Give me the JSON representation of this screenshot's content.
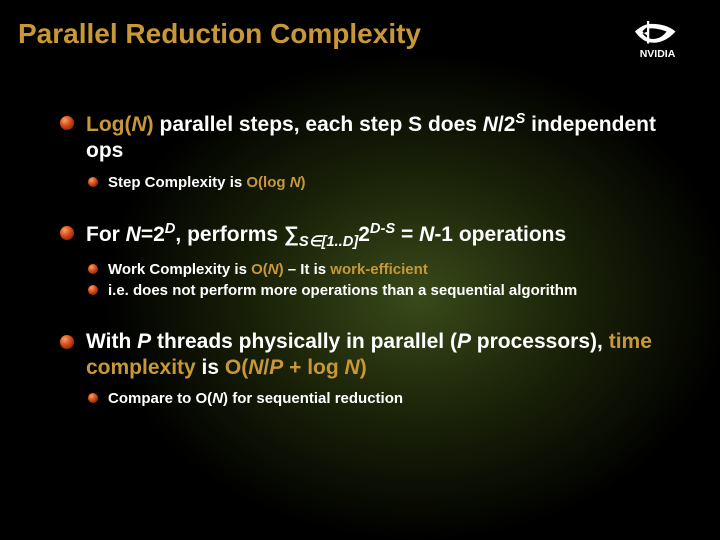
{
  "title": "Parallel Reduction Complexity",
  "colors": {
    "title": "#c89838",
    "highlight": "#c89838",
    "text": "#ffffff",
    "background": "#000000",
    "glow": "#3a4a1a",
    "bullet_light": "#ffa060",
    "bullet_mid": "#d04818",
    "bullet_dark": "#601800"
  },
  "typography": {
    "title_fontsize": 28,
    "main_fontsize": 21,
    "sub_fontsize": 15,
    "font_family": "Arial"
  },
  "bullets": [
    {
      "main_html": "<span class=\"hl\">Log(<span class=\"italic\">N</span>)</span> parallel steps, each step S does <span class=\"italic\">N</span>/2<span class=\"sup italic\">S</span> independent ops",
      "subs": [
        {
          "html": "Step Complexity is <span class=\"hl\">O(log <span class=\"italic\">N</span>)</span>"
        }
      ]
    },
    {
      "main_html": "For <span class=\"italic\">N</span>=2<span class=\"sup italic\">D</span>, performs &sum;<span class=\"sub italic\">S&isin;[1..D]</span>2<span class=\"sup italic\">D-S</span> = <span class=\"italic\">N</span>-1 operations",
      "subs": [
        {
          "html": "Work Complexity is <span class=\"hl\">O(<span class=\"italic\">N</span>)</span> &ndash; It is <span class=\"hl\">work-efficient</span>"
        },
        {
          "html": "i.e. does not perform more operations than a sequential algorithm"
        }
      ]
    },
    {
      "main_html": "With <span class=\"italic\">P</span> threads physically in parallel (<span class=\"italic\">P</span> processors), <span class=\"hl\">time complexity</span> is <span class=\"hl\">O(<span class=\"italic\">N</span>/<span class=\"italic\">P</span> + log <span class=\"italic\">N</span>)</span>",
      "subs": [
        {
          "html": "Compare to O(<span class=\"italic\">N</span>) for sequential reduction"
        }
      ]
    }
  ],
  "logo": {
    "name": "NVIDIA",
    "eye_color": "#ffffff",
    "text_color": "#ffffff"
  }
}
